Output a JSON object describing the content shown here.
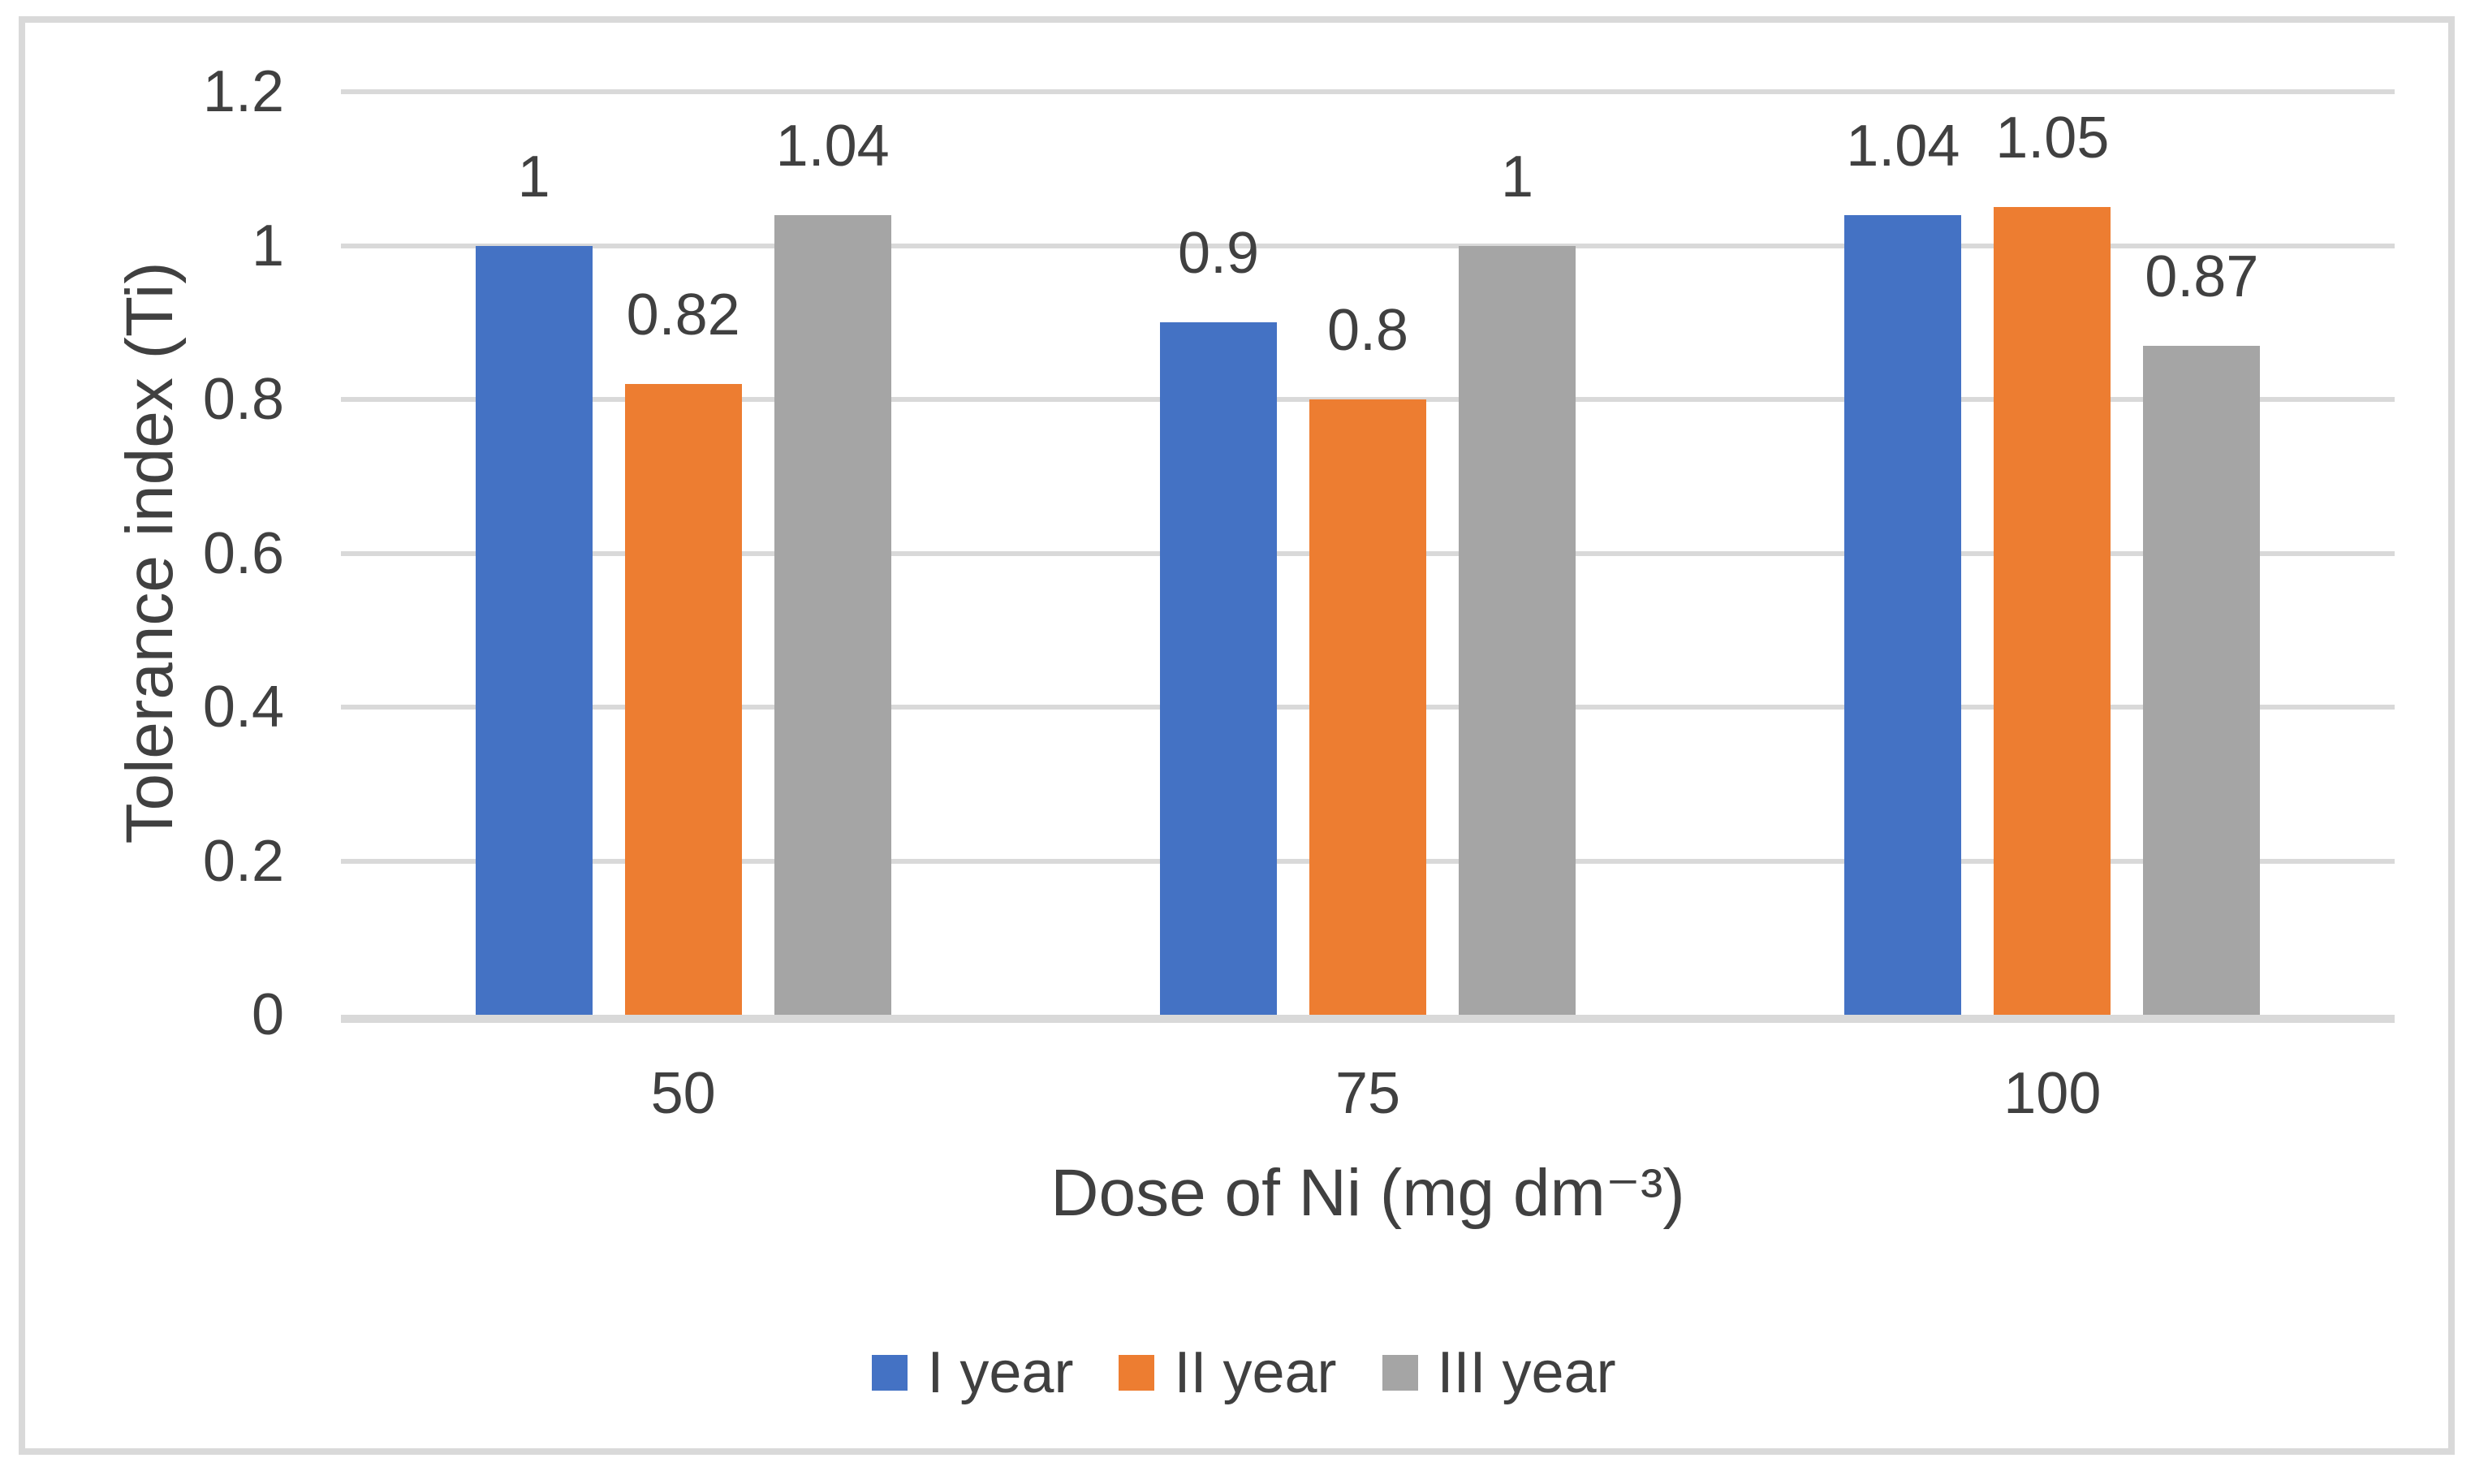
{
  "figure": {
    "background": "#FFFFFF",
    "border_color": "#D9D9D9"
  },
  "chart_data": {
    "type": "bar",
    "title": "",
    "xlabel": "Dose of Ni (mg dm⁻³)",
    "ylabel": "Tolerance index (Ti)",
    "categories": [
      "50",
      "75",
      "100"
    ],
    "series": [
      {
        "name": "I year",
        "color": "#4472C4",
        "values": [
          1,
          0.9,
          1.04
        ],
        "data_labels": [
          "1",
          "0.9",
          "1.04"
        ]
      },
      {
        "name": "II year",
        "color": "#ED7D31",
        "values": [
          0.82,
          0.8,
          1.05
        ],
        "data_labels": [
          "0.82",
          "0.8",
          "1.05"
        ]
      },
      {
        "name": "III year",
        "color": "#A5A5A5",
        "values": [
          1.04,
          1,
          0.87
        ],
        "data_labels": [
          "1.04",
          "1",
          "0.87"
        ]
      }
    ],
    "ylim": [
      0,
      1.2
    ],
    "yticks": [
      0,
      0.2,
      0.4,
      0.6,
      0.8,
      1,
      1.2
    ],
    "ytick_labels": [
      "0",
      "0.2",
      "0.4",
      "0.6",
      "0.8",
      "1",
      "1.2"
    ],
    "grid": true,
    "gridline_color": "#D9D9D9",
    "axis_line_color": "#D9D9D9",
    "text_color": "#404040",
    "legend_position": "bottom",
    "legend": [
      "I year",
      "II year",
      "III year"
    ]
  }
}
